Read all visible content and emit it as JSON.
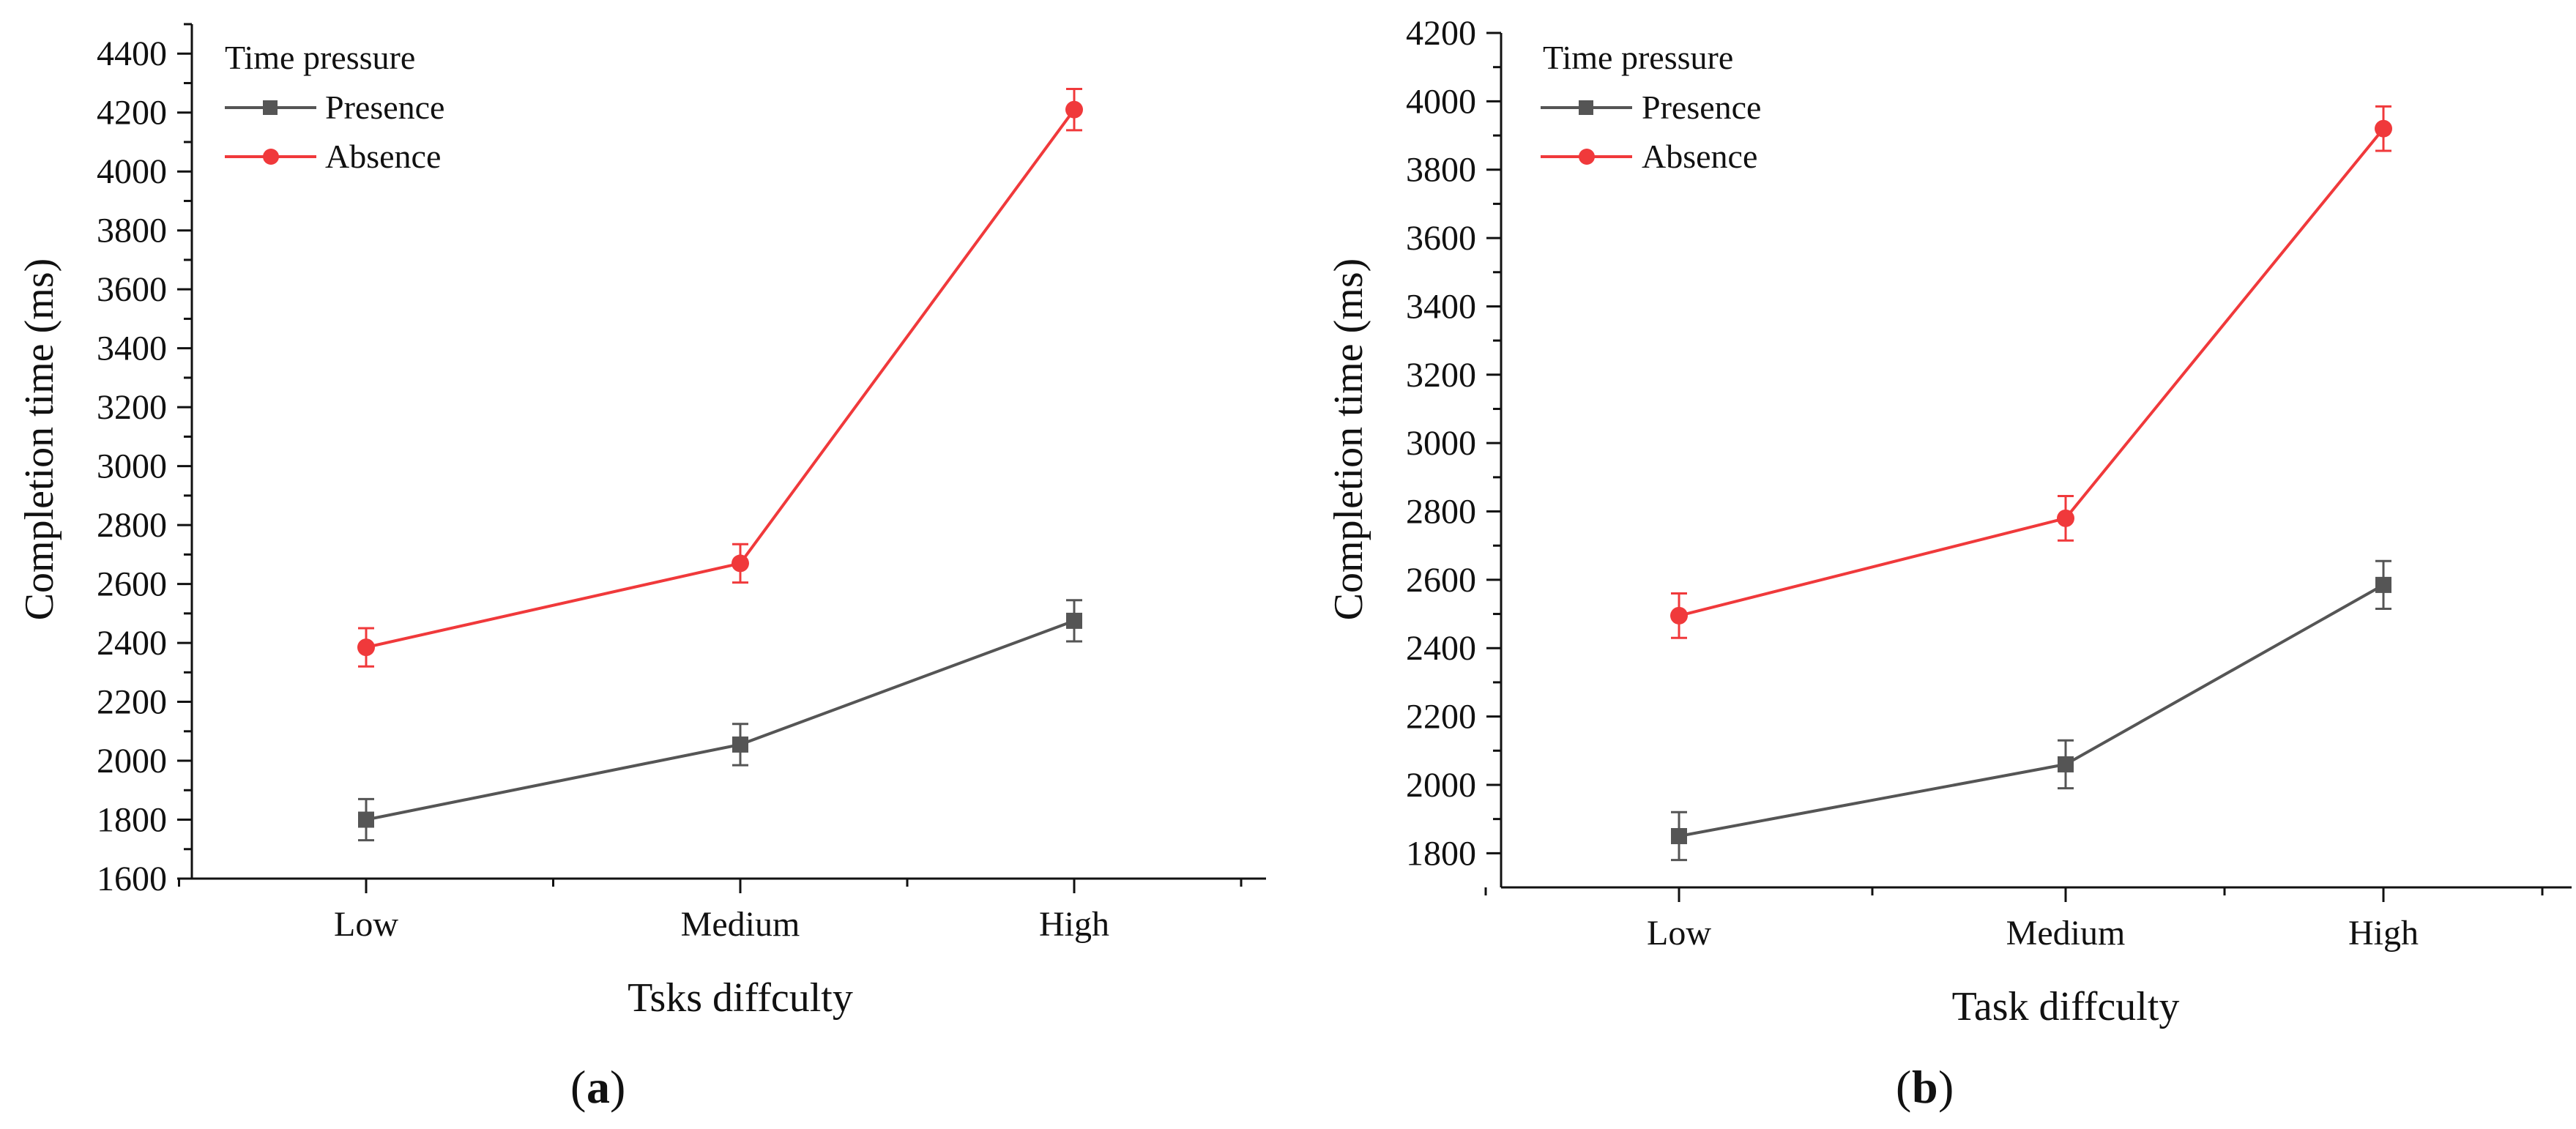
{
  "chart_data": [
    {
      "type": "line",
      "panel_label": "a",
      "title": "",
      "categories": [
        "Low",
        "Medium",
        "High"
      ],
      "xlabel": "Tsks diffculty",
      "ylabel": "Completion time (ms)",
      "ylim": [
        1600,
        4500
      ],
      "yticks": [
        1600,
        1800,
        2000,
        2200,
        2400,
        2600,
        2800,
        3000,
        3200,
        3400,
        3600,
        3800,
        4000,
        4200,
        4400
      ],
      "legend_title": "Time pressure",
      "legend_position": "top-left",
      "series": [
        {
          "name": "Presence",
          "color": "#555555",
          "marker": "square",
          "values": [
            1800,
            2055,
            2475
          ],
          "errors": [
            70,
            70,
            70
          ]
        },
        {
          "name": "Absence",
          "color": "#f0393b",
          "marker": "circle",
          "values": [
            2385,
            2670,
            4210
          ],
          "errors": [
            65,
            65,
            70
          ]
        }
      ]
    },
    {
      "type": "line",
      "panel_label": "b",
      "title": "",
      "categories": [
        "Low",
        "Medium",
        "High"
      ],
      "xlabel": "Task diffculty",
      "ylabel": "Completion time (ms)",
      "ylim": [
        1700,
        4200
      ],
      "yticks": [
        1800,
        2000,
        2200,
        2400,
        2600,
        2800,
        3000,
        3200,
        3400,
        3600,
        3800,
        4000,
        4200
      ],
      "legend_title": "Time pressure",
      "legend_position": "top-left",
      "series": [
        {
          "name": "Presence",
          "color": "#555555",
          "marker": "square",
          "values": [
            1850,
            2060,
            2585
          ],
          "errors": [
            70,
            70,
            70
          ]
        },
        {
          "name": "Absence",
          "color": "#f0393b",
          "marker": "circle",
          "values": [
            2495,
            2780,
            3920
          ],
          "errors": [
            65,
            65,
            65
          ]
        }
      ]
    }
  ]
}
